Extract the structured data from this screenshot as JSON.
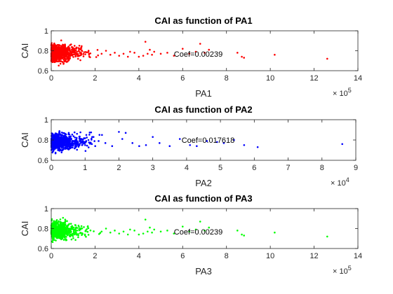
{
  "chart_data": [
    {
      "type": "scatter",
      "title": "CAI as function of PA1",
      "xlabel": "PA1",
      "ylabel": "CAI",
      "xlim": [
        0,
        14
      ],
      "ylim": [
        0.6,
        1.0
      ],
      "x_multiplier": "× 10",
      "x_multiplier_exp": "5",
      "xticks": [
        "0",
        "2",
        "4",
        "6",
        "8",
        "10",
        "12",
        "14"
      ],
      "yticks": [
        "0.6",
        "0.8",
        "1"
      ],
      "annotation": {
        "text": "Coef=0.00239",
        "x": 5.6,
        "y": 0.77
      },
      "color": "#ff0000",
      "grid": false,
      "sparse_points": [
        [
          2.3,
          0.77
        ],
        [
          2.5,
          0.8
        ],
        [
          2.7,
          0.76
        ],
        [
          2.9,
          0.78
        ],
        [
          3.1,
          0.75
        ],
        [
          3.3,
          0.77
        ],
        [
          3.5,
          0.74
        ],
        [
          3.6,
          0.79
        ],
        [
          3.8,
          0.78
        ],
        [
          4.0,
          0.74
        ],
        [
          4.2,
          0.75
        ],
        [
          4.4,
          0.77
        ],
        [
          4.6,
          0.76
        ],
        [
          4.3,
          0.89
        ],
        [
          4.5,
          0.81
        ],
        [
          4.7,
          0.79
        ],
        [
          5.0,
          0.77
        ],
        [
          5.3,
          0.78
        ],
        [
          5.6,
          0.75
        ],
        [
          6.0,
          0.82
        ],
        [
          6.3,
          0.77
        ],
        [
          6.6,
          0.79
        ],
        [
          6.8,
          0.87
        ],
        [
          7.0,
          0.78
        ],
        [
          7.2,
          0.81
        ],
        [
          8.5,
          0.78
        ],
        [
          8.7,
          0.74
        ],
        [
          8.8,
          0.73
        ],
        [
          10.2,
          0.76
        ],
        [
          12.6,
          0.72
        ]
      ]
    },
    {
      "type": "scatter",
      "title": "CAI as function of PA2",
      "xlabel": "PA2",
      "ylabel": "CAI",
      "xlim": [
        0,
        9
      ],
      "ylim": [
        0.6,
        1.0
      ],
      "x_multiplier": "× 10",
      "x_multiplier_exp": "4",
      "xticks": [
        "0",
        "1",
        "2",
        "3",
        "4",
        "5",
        "6",
        "7",
        "8",
        "9"
      ],
      "yticks": [
        "0.6",
        "0.8",
        "1"
      ],
      "annotation": {
        "text": "Coef=0.017618",
        "x": 3.85,
        "y": 0.8
      },
      "color": "#0000ff",
      "grid": false,
      "sparse_points": [
        [
          1.1,
          0.8
        ],
        [
          1.2,
          0.76
        ],
        [
          1.25,
          0.83
        ],
        [
          1.3,
          0.74
        ],
        [
          1.4,
          0.79
        ],
        [
          1.5,
          0.85
        ],
        [
          1.6,
          0.77
        ],
        [
          1.8,
          0.74
        ],
        [
          2.0,
          0.88
        ],
        [
          2.1,
          0.81
        ],
        [
          2.2,
          0.87
        ],
        [
          2.4,
          0.77
        ],
        [
          2.6,
          0.74
        ],
        [
          2.8,
          0.75
        ],
        [
          3.0,
          0.83
        ],
        [
          3.2,
          0.77
        ],
        [
          3.5,
          0.74
        ],
        [
          3.8,
          0.81
        ],
        [
          4.1,
          0.75
        ],
        [
          4.3,
          0.74
        ],
        [
          4.6,
          0.79
        ],
        [
          4.9,
          0.78
        ],
        [
          5.1,
          0.77
        ],
        [
          5.4,
          0.8
        ],
        [
          5.7,
          0.75
        ],
        [
          6.1,
          0.73
        ],
        [
          8.6,
          0.76
        ]
      ]
    },
    {
      "type": "scatter",
      "title": "CAI as function of PA3",
      "xlabel": "PA3",
      "ylabel": "CAI",
      "xlim": [
        0,
        14
      ],
      "ylim": [
        0.6,
        1.0
      ],
      "x_multiplier": "× 10",
      "x_multiplier_exp": "5",
      "xticks": [
        "0",
        "2",
        "4",
        "6",
        "8",
        "10",
        "12",
        "14"
      ],
      "yticks": [
        "0.6",
        "0.8",
        "1"
      ],
      "annotation": {
        "text": "Coef=0.00239",
        "x": 5.6,
        "y": 0.77
      },
      "color": "#00ff00",
      "grid": false,
      "sparse_points": [
        [
          2.3,
          0.77
        ],
        [
          2.5,
          0.8
        ],
        [
          2.7,
          0.76
        ],
        [
          2.9,
          0.78
        ],
        [
          3.1,
          0.75
        ],
        [
          3.3,
          0.77
        ],
        [
          3.5,
          0.74
        ],
        [
          3.6,
          0.79
        ],
        [
          3.8,
          0.78
        ],
        [
          4.0,
          0.74
        ],
        [
          4.2,
          0.75
        ],
        [
          4.4,
          0.77
        ],
        [
          4.6,
          0.76
        ],
        [
          4.3,
          0.89
        ],
        [
          4.5,
          0.81
        ],
        [
          4.7,
          0.79
        ],
        [
          5.0,
          0.77
        ],
        [
          5.3,
          0.78
        ],
        [
          5.6,
          0.75
        ],
        [
          6.0,
          0.82
        ],
        [
          6.3,
          0.77
        ],
        [
          6.6,
          0.79
        ],
        [
          6.8,
          0.87
        ],
        [
          7.0,
          0.78
        ],
        [
          7.2,
          0.81
        ],
        [
          8.5,
          0.78
        ],
        [
          8.7,
          0.74
        ],
        [
          8.8,
          0.73
        ],
        [
          10.2,
          0.76
        ],
        [
          12.6,
          0.72
        ]
      ]
    }
  ]
}
